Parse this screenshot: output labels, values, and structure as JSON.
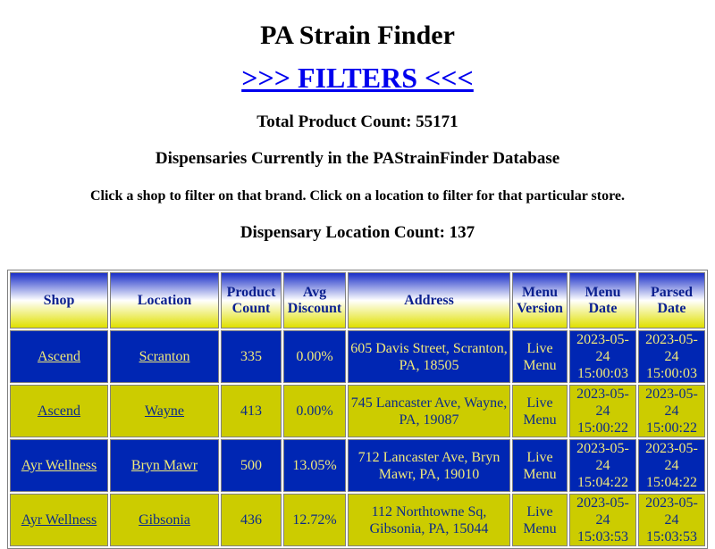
{
  "page": {
    "title": "PA Strain Finder",
    "filters_link": ">>> FILTERS <<<",
    "total_product_count": "Total Product Count: 55171",
    "dispensaries_heading": "Dispensaries Currently in the PAStrainFinder Database",
    "instructions": "Click a shop to filter on that brand. Click on a location to filter for that particular store.",
    "location_count": "Dispensary Location Count: 137"
  },
  "table": {
    "headers": [
      "Shop",
      "Location",
      "Product Count",
      "Avg Discount",
      "Address",
      "Menu Version",
      "Menu Date",
      "Parsed Date"
    ],
    "rows": [
      {
        "shop": "Ascend",
        "location": "Scranton",
        "product_count": "335",
        "avg_discount": "0.00%",
        "address": "605 Davis Street, Scranton, PA, 18505",
        "menu_version": "Live Menu",
        "menu_date": "2023-05-24 15:00:03",
        "parsed_date": "2023-05-24 15:00:03",
        "style": "blue"
      },
      {
        "shop": "Ascend",
        "location": "Wayne",
        "product_count": "413",
        "avg_discount": "0.00%",
        "address": "745 Lancaster Ave, Wayne, PA, 19087",
        "menu_version": "Live Menu",
        "menu_date": "2023-05-24 15:00:22",
        "parsed_date": "2023-05-24 15:00:22",
        "style": "yellow"
      },
      {
        "shop": "Ayr Wellness",
        "location": "Bryn Mawr",
        "product_count": "500",
        "avg_discount": "13.05%",
        "address": "712 Lancaster Ave, Bryn Mawr, PA, 19010",
        "menu_version": "Live Menu",
        "menu_date": "2023-05-24 15:04:22",
        "parsed_date": "2023-05-24 15:04:22",
        "style": "blue"
      },
      {
        "shop": "Ayr Wellness",
        "location": "Gibsonia",
        "product_count": "436",
        "avg_discount": "12.72%",
        "address": "112 Northtowne Sq, Gibsonia, PA, 15044",
        "menu_version": "Live Menu",
        "menu_date": "2023-05-24 15:03:53",
        "parsed_date": "2023-05-24 15:03:53",
        "style": "yellow"
      }
    ]
  },
  "colors": {
    "row_blue_bg": "#0026b3",
    "row_blue_text": "#f0e97a",
    "row_yellow_bg": "#cccc00",
    "row_yellow_text": "#0a2a8a",
    "header_text": "#0a1f8f",
    "link": "#0000ee"
  }
}
